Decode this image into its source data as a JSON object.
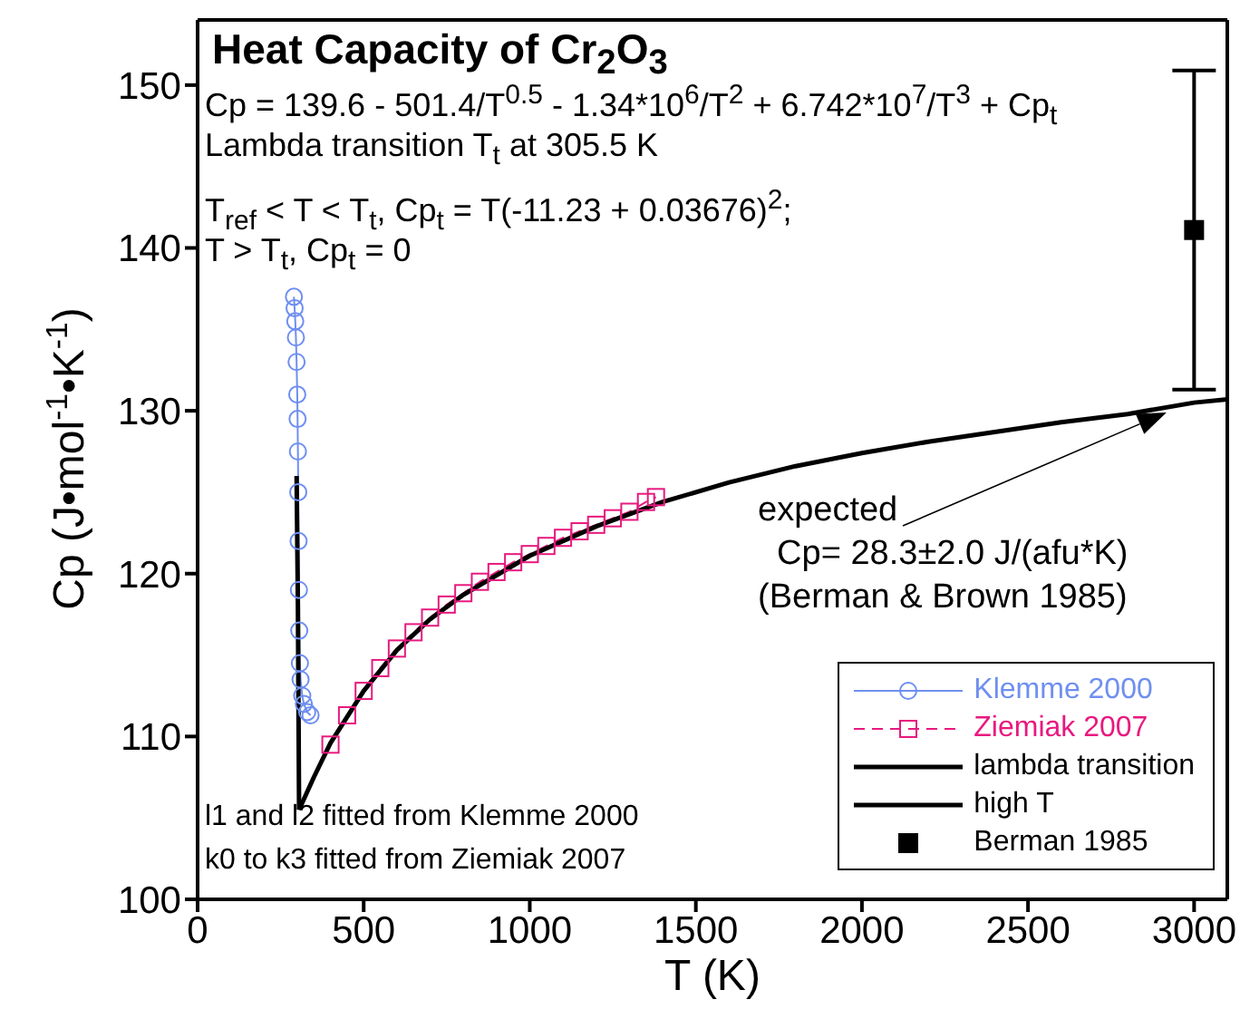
{
  "chart_data": {
    "type": "line",
    "title": "Heat Capacity of Cr$_{2}$O$_{3}$",
    "xlabel": "T (K)",
    "ylabel": "Cp (J•mol$^{-1}$•K$^{-1}$)",
    "xlim": [
      0,
      3100
    ],
    "xticks": [
      0,
      500,
      1000,
      1500,
      2000,
      2500,
      3000
    ],
    "ylim": [
      100,
      154
    ],
    "yticks": [
      100,
      110,
      120,
      130,
      140,
      150
    ],
    "grid": false,
    "legend": "bottom right",
    "annotations": [
      "Cp = 139.6 - 501.4/T$^{0.5}$ - 1.34*10$^{6}$/T$^{2}$ + 6.742*10$^{7}$/T$^{3}$ + Cp$_{t}$",
      "Lambda transition T$_{t}$ at 305.5 K",
      "T$_{ref}$ < T < T$_{t}$, Cp$_{t}$ = T(-11.23 + 0.03676)$^{2}$;",
      "T > T$_{t}$, Cp$_{t}$ = 0",
      "l1 and l2 fitted from Klemme 2000",
      "k0 to k3 fitted from Ziemiak 2007",
      {
        "text": "expected\n  Cp= 28.3±2.0 J/(afu*K)\n(Berman & Brown 1985)",
        "x": 2950,
        "y": 130.5
      }
    ],
    "series": [
      {
        "name": "Klemme 2000",
        "color": "#6f8ff0",
        "marker": "circle",
        "line_style": "solid",
        "x": [
          290,
          292,
          294,
          296,
          298,
          300,
          301,
          302,
          303,
          304,
          305,
          306,
          308,
          310,
          315,
          320,
          330,
          340
        ],
        "values": [
          137.0,
          136.3,
          135.5,
          134.5,
          133.0,
          131.0,
          129.5,
          127.5,
          125.0,
          122.0,
          119.0,
          116.5,
          114.5,
          113.5,
          112.5,
          112.0,
          111.5,
          111.3
        ]
      },
      {
        "name": "Ziemiak 2007",
        "color": "#e8197f",
        "marker": "square",
        "line_style": "dashed",
        "x": [
          400,
          450,
          500,
          550,
          600,
          650,
          700,
          750,
          800,
          850,
          900,
          950,
          1000,
          1050,
          1100,
          1150,
          1200,
          1250,
          1300,
          1350,
          1380
        ],
        "values": [
          109.5,
          111.3,
          112.8,
          114.2,
          115.4,
          116.4,
          117.3,
          118.1,
          118.8,
          119.5,
          120.1,
          120.7,
          121.2,
          121.7,
          122.2,
          122.6,
          123.0,
          123.4,
          123.8,
          124.4,
          124.7
        ]
      },
      {
        "name": "lambda transition",
        "color": "#000000",
        "marker": "none",
        "line_style": "solid",
        "x": [
          298,
          302,
          305.5
        ],
        "values": [
          126.0,
          118.0,
          105.5
        ]
      },
      {
        "name": "high T",
        "color": "#000000",
        "marker": "none",
        "line_style": "solid",
        "x": [
          305.5,
          350,
          400,
          500,
          600,
          700,
          800,
          1000,
          1200,
          1400,
          1600,
          1800,
          2000,
          2200,
          2400,
          2600,
          2800,
          3000,
          3100
        ],
        "values": [
          105.5,
          107.5,
          109.6,
          112.8,
          115.3,
          117.2,
          118.7,
          121.1,
          122.9,
          124.4,
          125.6,
          126.6,
          127.4,
          128.1,
          128.7,
          129.3,
          129.8,
          130.5,
          130.7
        ]
      },
      {
        "name": "Berman 1985",
        "type": "scatter",
        "color": "#000000",
        "marker": "square",
        "x": [
          3000
        ],
        "values": [
          141.1
        ],
        "errors": [
          9.8
        ]
      }
    ]
  }
}
